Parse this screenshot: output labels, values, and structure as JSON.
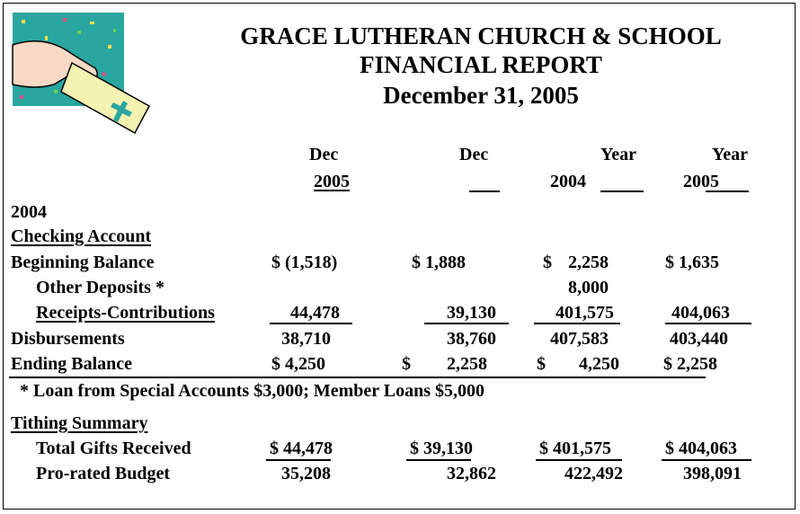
{
  "header": {
    "title_lines": [
      "GRACE LUTHERAN CHURCH & SCHOOL",
      "FINANCIAL REPORT",
      "December 31, 2005"
    ]
  },
  "columns": [
    {
      "top": "Dec",
      "bottom": "2005"
    },
    {
      "top": "Dec"
    },
    {
      "top": "Year",
      "bottom": "2004"
    },
    {
      "top": "Year",
      "bottom": "2005"
    }
  ],
  "rows": [
    {
      "label": "2004",
      "cells": []
    },
    {
      "label": "Checking Account",
      "cells": []
    },
    {
      "label": "Beginning Balance",
      "cells": [
        "$ (1,518)",
        "$ 1,888",
        "$",
        "2,258",
        "$ 1,635"
      ]
    },
    {
      "label": "Other Deposits *",
      "cells": [
        "8,000"
      ]
    },
    {
      "label": "Receipts-Contributions",
      "cells": [
        "44,478",
        "39,130",
        "401,575",
        "404,063"
      ]
    },
    {
      "label": "Disbursements",
      "cells": [
        "38,710",
        "38,760",
        "407,583",
        "403,440"
      ]
    },
    {
      "label": "Ending Balance",
      "cells": [
        "$ 4,250",
        "$",
        "2,258",
        "$",
        "4,250",
        "$ 2,258"
      ]
    },
    {
      "label": "* Loan from Special Accounts $3,000; Member Loans $5,000",
      "cells": []
    },
    {
      "label": "Tithing Summary",
      "cells": []
    },
    {
      "label": "Total Gifts Received",
      "cells": [
        "$ 44,478",
        "$ 39,130",
        "$ 401,575",
        "$ 404,063"
      ]
    },
    {
      "label": "Pro-rated Budget",
      "cells": [
        "35,208",
        "32,862",
        "422,492",
        "398,091"
      ]
    }
  ]
}
